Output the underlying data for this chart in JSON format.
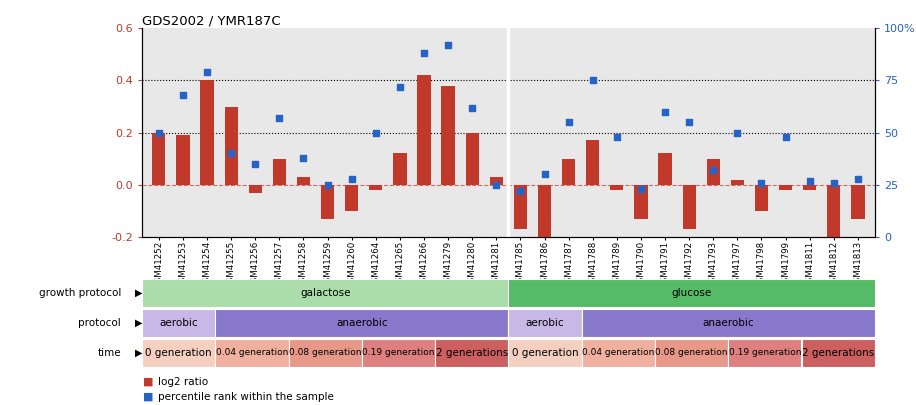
{
  "title": "GDS2002 / YMR187C",
  "samples": [
    "GSM41252",
    "GSM41253",
    "GSM41254",
    "GSM41255",
    "GSM41256",
    "GSM41257",
    "GSM41258",
    "GSM41259",
    "GSM41260",
    "GSM41264",
    "GSM41265",
    "GSM41266",
    "GSM41279",
    "GSM41280",
    "GSM41281",
    "GSM41785",
    "GSM41786",
    "GSM41787",
    "GSM41788",
    "GSM41789",
    "GSM41790",
    "GSM41791",
    "GSM41792",
    "GSM41793",
    "GSM41797",
    "GSM41798",
    "GSM41799",
    "GSM41811",
    "GSM41812",
    "GSM41813"
  ],
  "log2_ratio": [
    0.2,
    0.19,
    0.4,
    0.3,
    -0.03,
    0.1,
    0.03,
    -0.13,
    -0.1,
    -0.02,
    0.12,
    0.42,
    0.38,
    0.2,
    0.03,
    -0.17,
    -0.2,
    0.1,
    0.17,
    -0.02,
    -0.13,
    0.12,
    -0.17,
    0.1,
    0.02,
    -0.1,
    -0.02,
    -0.02,
    -0.22,
    -0.13
  ],
  "percentile": [
    50,
    68,
    79,
    40,
    35,
    57,
    38,
    25,
    28,
    50,
    72,
    88,
    92,
    62,
    25,
    22,
    30,
    55,
    75,
    48,
    23,
    60,
    55,
    32,
    50,
    26,
    48,
    27,
    26,
    28
  ],
  "bar_color": "#c0392b",
  "dot_color": "#2563c7",
  "zero_line_color": "#c0392b",
  "bg_color": "#e8e8e8",
  "ylim_left": [
    -0.2,
    0.6
  ],
  "ylim_right": [
    0,
    100
  ],
  "yticks_left": [
    -0.2,
    0.0,
    0.2,
    0.4,
    0.6
  ],
  "yticks_right": [
    0,
    25,
    50,
    75,
    100
  ],
  "hlines": [
    0.2,
    0.4
  ],
  "growth_groups": [
    {
      "label": "galactose",
      "start": 0,
      "end": 14,
      "color": "#aaddaa"
    },
    {
      "label": "glucose",
      "start": 15,
      "end": 29,
      "color": "#55bb66"
    }
  ],
  "protocol_groups": [
    {
      "label": "aerobic",
      "start": 0,
      "end": 2,
      "color": "#c8b8e8"
    },
    {
      "label": "anaerobic",
      "start": 3,
      "end": 14,
      "color": "#8878cc"
    },
    {
      "label": "aerobic",
      "start": 15,
      "end": 17,
      "color": "#c8b8e8"
    },
    {
      "label": "anaerobic",
      "start": 18,
      "end": 29,
      "color": "#8878cc"
    }
  ],
  "time_groups": [
    {
      "label": "0 generation",
      "start": 0,
      "end": 2,
      "color": "#f5d0c0"
    },
    {
      "label": "0.04 generation",
      "start": 3,
      "end": 5,
      "color": "#f0b0a0"
    },
    {
      "label": "0.08 generation",
      "start": 6,
      "end": 8,
      "color": "#e89888"
    },
    {
      "label": "0.19 generation",
      "start": 9,
      "end": 11,
      "color": "#de8080"
    },
    {
      "label": "2 generations",
      "start": 12,
      "end": 14,
      "color": "#cc6060"
    },
    {
      "label": "0 generation",
      "start": 15,
      "end": 17,
      "color": "#f5d0c0"
    },
    {
      "label": "0.04 generation",
      "start": 18,
      "end": 20,
      "color": "#f0b0a0"
    },
    {
      "label": "0.08 generation",
      "start": 21,
      "end": 23,
      "color": "#e89888"
    },
    {
      "label": "0.19 generation",
      "start": 24,
      "end": 26,
      "color": "#de8080"
    },
    {
      "label": "2 generations",
      "start": 27,
      "end": 29,
      "color": "#cc6060"
    }
  ],
  "row_labels": [
    "growth protocol",
    "protocol",
    "time"
  ],
  "legend_items": [
    {
      "color": "#c0392b",
      "label": "log2 ratio"
    },
    {
      "color": "#2563c7",
      "label": "percentile rank within the sample"
    }
  ]
}
